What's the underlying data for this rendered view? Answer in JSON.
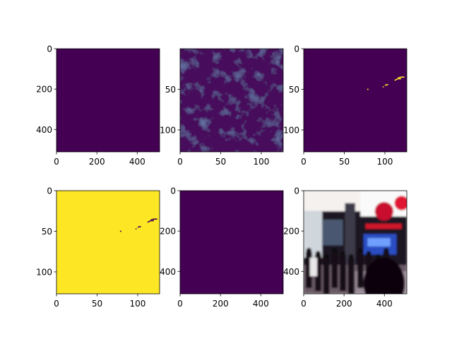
{
  "figure": {
    "background": "#ffffff",
    "grid": false
  },
  "chart_data": [
    {
      "type": "heatmap",
      "panel": "top-left",
      "fill": "#440154",
      "content": "uniform",
      "xlim": [
        0,
        511
      ],
      "ylim": [
        511,
        0
      ],
      "xticks": [
        0,
        200,
        400
      ],
      "yticks": [
        0,
        200,
        400
      ]
    },
    {
      "type": "heatmap",
      "panel": "top-center",
      "fill": "#46085c",
      "content": "noise",
      "xlim": [
        0,
        127
      ],
      "ylim": [
        127,
        0
      ],
      "xticks": [
        0,
        50,
        100
      ],
      "yticks": [
        50,
        100
      ]
    },
    {
      "type": "heatmap",
      "panel": "top-right",
      "fill": "#440154",
      "content": "sparse-bright-marks",
      "marks_color": "#fde725",
      "xlim": [
        0,
        127
      ],
      "ylim": [
        127,
        0
      ],
      "xticks": [
        0,
        50,
        100
      ],
      "yticks": [
        0,
        50,
        100
      ]
    },
    {
      "type": "heatmap",
      "panel": "bottom-left",
      "fill": "#fde725",
      "content": "sparse-dark-marks",
      "marks_color": "#440154",
      "xlim": [
        0,
        127
      ],
      "ylim": [
        127,
        0
      ],
      "xticks": [
        0,
        50,
        100
      ],
      "yticks": [
        0,
        50,
        100
      ]
    },
    {
      "type": "heatmap",
      "panel": "bottom-center",
      "fill": "#440154",
      "content": "uniform",
      "xlim": [
        0,
        511
      ],
      "ylim": [
        511,
        0
      ],
      "xticks": [
        0,
        200,
        400
      ],
      "yticks": [
        0,
        200,
        400
      ]
    },
    {
      "type": "image",
      "panel": "bottom-right",
      "content": "photo",
      "xlim": [
        0,
        511
      ],
      "ylim": [
        511,
        0
      ],
      "xticks": [
        0,
        200,
        400
      ],
      "yticks": [
        0,
        200,
        400
      ]
    }
  ]
}
